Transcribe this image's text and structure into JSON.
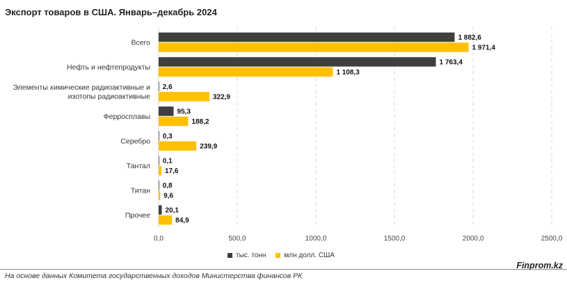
{
  "title": "Экспорт товаров в США. Январь–декабрь 2024",
  "source": "На основе данных Комитета государственных доходов Министерства финансов РК",
  "brand": "Finprom.kz",
  "colors": {
    "tons": "#3f3f3f",
    "usd": "#ffc000",
    "grid": "#d9d9d9"
  },
  "chart_data": {
    "type": "bar",
    "orientation": "horizontal",
    "categories": [
      "Всего",
      "Нефть и нефтепродукты",
      [
        "Элементы химические радиоактивные и",
        "изотопы радиоактивные"
      ],
      "Ферросплавы",
      "Серебро",
      "Тантал",
      "Титан",
      "Прочее"
    ],
    "series": [
      {
        "name": "тыс. тонн",
        "color": "#3f3f3f",
        "values": [
          1882.6,
          1763.4,
          2.6,
          95.3,
          0.3,
          0.1,
          0.8,
          20.1
        ],
        "labels": [
          "1 882,6",
          "1 763,4",
          "2,6",
          "95,3",
          "0,3",
          "0,1",
          "0,8",
          "20,1"
        ]
      },
      {
        "name": "млн долл. США",
        "color": "#ffc000",
        "values": [
          1971.4,
          1108.3,
          322.9,
          188.2,
          239.9,
          17.6,
          9.6,
          84.9
        ],
        "labels": [
          "1 971,4",
          "1 108,3",
          "322,9",
          "188,2",
          "239,9",
          "17,6",
          "9,6",
          "84,9"
        ]
      }
    ],
    "xlim": [
      0,
      2500
    ],
    "ticks": [
      0,
      500,
      1000,
      1500,
      2000,
      2500
    ],
    "tick_labels": [
      "0,0",
      "500,0",
      "1000,0",
      "1500,0",
      "2000,0",
      "2500,0"
    ],
    "grid": true,
    "legend": "bottom"
  }
}
